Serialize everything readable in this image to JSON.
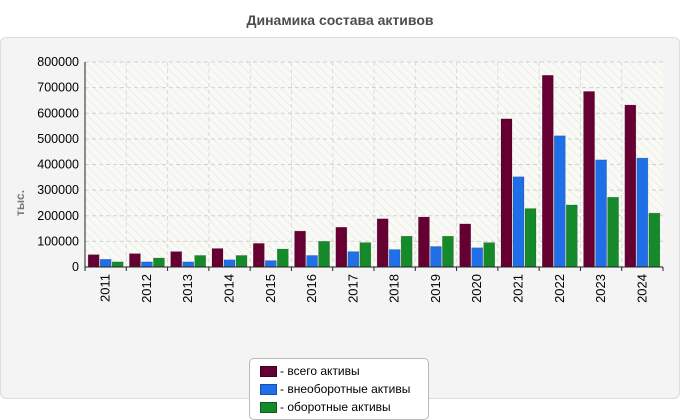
{
  "chart_data": {
    "type": "bar",
    "title": "Динамика состава активов",
    "xlabel": "",
    "ylabel": "тыс.",
    "ylim": [
      0,
      800000
    ],
    "yticks": [
      0,
      100000,
      200000,
      300000,
      400000,
      500000,
      600000,
      700000,
      800000
    ],
    "grid": true,
    "legend_position": "bottom-center",
    "categories": [
      "2011",
      "2012",
      "2013",
      "2014",
      "2015",
      "2016",
      "2017",
      "2018",
      "2019",
      "2020",
      "2021",
      "2022",
      "2023",
      "2024"
    ],
    "series": [
      {
        "name": "всего активы",
        "color": "#660033",
        "values": [
          48000,
          52000,
          60000,
          72000,
          92000,
          140000,
          155000,
          188000,
          195000,
          168000,
          578000,
          748000,
          685000,
          632000
        ]
      },
      {
        "name": "внеоборотные активы",
        "color": "#1f6fe8",
        "values": [
          30000,
          20000,
          20000,
          28000,
          25000,
          45000,
          60000,
          68000,
          80000,
          75000,
          352000,
          512000,
          418000,
          425000
        ]
      },
      {
        "name": "оборотные активы",
        "color": "#158a2b",
        "values": [
          20000,
          35000,
          45000,
          45000,
          70000,
          100000,
          95000,
          120000,
          120000,
          95000,
          228000,
          242000,
          272000,
          210000
        ]
      }
    ]
  }
}
